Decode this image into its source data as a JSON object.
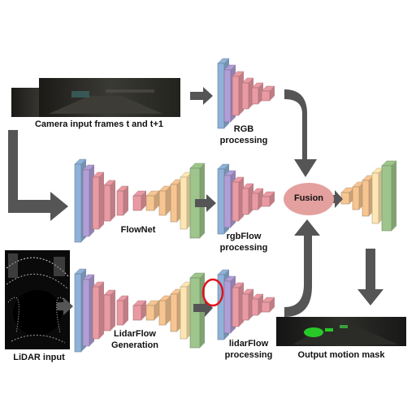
{
  "labels": {
    "camera_input": "Camera input frames t and t+1",
    "rgb_processing_1": "RGB",
    "rgb_processing_2": "processing",
    "flownet": "FlowNet",
    "rgbflow_1": "rgbFlow",
    "rgbflow_2": "processing",
    "fusion": "Fusion",
    "lidar_input": "LiDAR input",
    "lidarflow_gen_1": "LidarFlow",
    "lidarflow_gen_2": "Generation",
    "lidarflow_proc_1": "lidarFlow",
    "lidarflow_proc_2": "processing",
    "output_mask": "Output motion mask"
  },
  "colors": {
    "blue": "#8fb2d8",
    "purple": "#b19ed6",
    "red": "#e99aa3",
    "orange": "#f6c592",
    "yellow": "#fde6b3",
    "green": "#9ec58c",
    "arrow": "#555555",
    "fusion": "#e4a09e",
    "highlight_circle": "#e0141c"
  }
}
